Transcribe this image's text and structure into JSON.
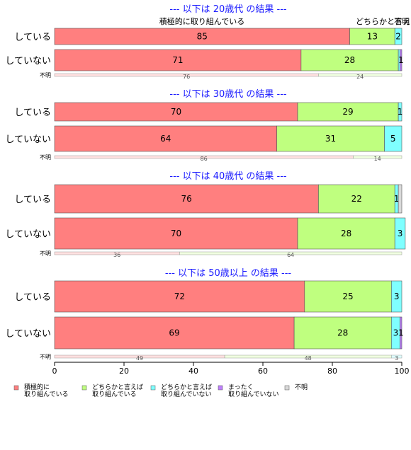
{
  "chart_data": {
    "type": "bar",
    "orientation": "horizontal",
    "stacked": true,
    "xlim": [
      0,
      100
    ],
    "xticks": [
      0,
      20,
      40,
      60,
      80,
      100
    ],
    "top_labels": [
      "積極的に取り組んでいる",
      "どちらかと言えば",
      "不明"
    ],
    "legend_position": "bottom",
    "categories": [
      {
        "key": "c1",
        "label": [
          "積極的に",
          "取り組んでいる"
        ],
        "color": "#ff7f7f",
        "light": "#ffe0e0"
      },
      {
        "key": "c2",
        "label": [
          "どちらかと言えば",
          "取り組んでいる"
        ],
        "color": "#bfff7f",
        "light": "#f0ffe0"
      },
      {
        "key": "c3",
        "label": [
          "どちらかと言えば",
          "取り組んでいない"
        ],
        "color": "#7fffff",
        "light": "#e0ffff"
      },
      {
        "key": "c4",
        "label": [
          "まったく",
          "取り組んでいない"
        ],
        "color": "#bf7fff",
        "light": "#f0e0ff"
      },
      {
        "key": "c5",
        "label": [
          "不明"
        ],
        "color": "#d9d9d9",
        "light": "#f0f0f0"
      }
    ],
    "panels": [
      {
        "title": "--- 以下は 20歳代 の結果 ---",
        "rows": [
          {
            "label": "している",
            "values": [
              85,
              13,
              2,
              0,
              0
            ],
            "labels": [
              "85",
              "13",
              "2",
              "",
              ""
            ]
          },
          {
            "label": "していない",
            "values": [
              71,
              28,
              0.5,
              0.5,
              0
            ],
            "labels": [
              "71",
              "28",
              "",
              "1",
              ""
            ]
          }
        ],
        "unknown": {
          "label": "不明",
          "values": [
            76,
            24,
            0,
            0,
            0
          ],
          "labels": [
            "76",
            "24",
            "",
            "",
            ""
          ]
        }
      },
      {
        "title": "--- 以下は 30歳代 の結果 ---",
        "rows": [
          {
            "label": "している",
            "values": [
              70,
              29,
              1,
              0,
              0
            ],
            "labels": [
              "70",
              "29",
              "1",
              "",
              ""
            ]
          },
          {
            "label": "していない",
            "values": [
              64,
              31,
              5,
              0,
              0
            ],
            "labels": [
              "64",
              "31",
              "5",
              "",
              ""
            ]
          }
        ],
        "unknown": {
          "label": "不明",
          "values": [
            86,
            14,
            0,
            0,
            0
          ],
          "labels": [
            "86",
            "14",
            "",
            "",
            ""
          ]
        }
      },
      {
        "title": "--- 以下は 40歳代 の結果 ---",
        "rows": [
          {
            "label": "している",
            "values": [
              76,
              22,
              1,
              0,
              1
            ],
            "labels": [
              "76",
              "22",
              "1",
              "",
              ""
            ]
          },
          {
            "label": "していない",
            "values": [
              70,
              28,
              3,
              0,
              0
            ],
            "labels": [
              "70",
              "28",
              "3",
              "",
              ""
            ]
          }
        ],
        "unknown": {
          "label": "不明",
          "values": [
            36,
            64,
            0,
            0,
            0
          ],
          "labels": [
            "36",
            "64",
            "",
            "",
            ""
          ]
        }
      },
      {
        "title": "--- 以下は 50歳以上 の結果 ---",
        "rows": [
          {
            "label": "している",
            "values": [
              72,
              25,
              3,
              0,
              0
            ],
            "labels": [
              "72",
              "25",
              "3",
              "",
              ""
            ]
          },
          {
            "label": "していない",
            "values": [
              69,
              28,
              2.5,
              0.5,
              0
            ],
            "labels": [
              "69",
              "28",
              "3",
              "1",
              ""
            ]
          }
        ],
        "unknown": {
          "label": "不明",
          "values": [
            49,
            48,
            3,
            0,
            0
          ],
          "labels": [
            "49",
            "48",
            "3",
            "",
            ""
          ]
        }
      }
    ]
  }
}
